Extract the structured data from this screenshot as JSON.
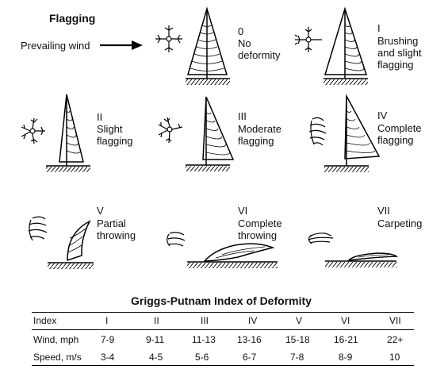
{
  "title": "Flagging",
  "prevailing_wind": "Prevailing wind",
  "stages": [
    {
      "numeral": "0",
      "text": "No\ndeformity"
    },
    {
      "numeral": "I",
      "text": "Brushing\nand slight\nflagging"
    },
    {
      "numeral": "II",
      "text": "Slight\nflagging"
    },
    {
      "numeral": "III",
      "text": "Moderate\nflagging"
    },
    {
      "numeral": "IV",
      "text": "Complete\nflagging"
    },
    {
      "numeral": "V",
      "text": "Partial\nthrowing"
    },
    {
      "numeral": "VI",
      "text": "Complete\nthrowing"
    },
    {
      "numeral": "VII",
      "text": "Carpeting"
    }
  ],
  "table": {
    "title": "Griggs-Putnam Index of Deformity",
    "rows": [
      {
        "label": "Index",
        "cells": [
          "I",
          "II",
          "III",
          "IV",
          "V",
          "VI",
          "VII"
        ]
      },
      {
        "label": "Wind, mph",
        "cells": [
          "7-9",
          "9-11",
          "11-13",
          "13-16",
          "15-18",
          "16-21",
          "22+"
        ]
      },
      {
        "label": "Speed, m/s",
        "cells": [
          "3-4",
          "4-5",
          "5-6",
          "6-7",
          "7-8",
          "8-9",
          "10"
        ]
      }
    ]
  }
}
